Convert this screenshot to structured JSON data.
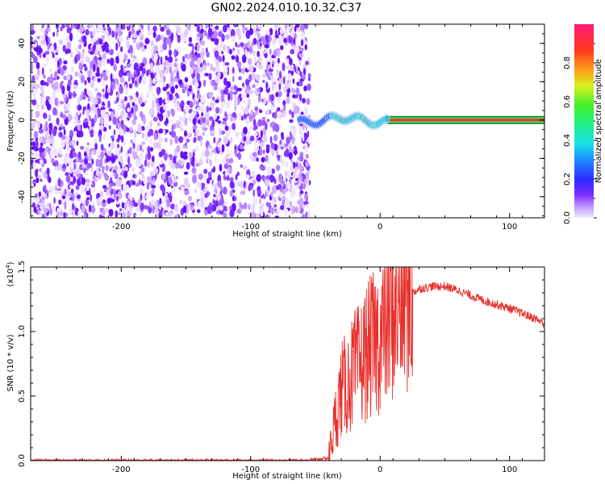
{
  "title": "GN02.2024.010.10.32.C37",
  "chart_data": [
    {
      "type": "heatmap",
      "xlabel": "Height of straight line (km)",
      "ylabel": "Frequency (Hz)",
      "xlim": [
        -270,
        127
      ],
      "ylim": [
        -51,
        50
      ],
      "xticks": [
        -200,
        -100,
        0,
        100
      ],
      "yticks": [
        -40,
        -20,
        0,
        20,
        40
      ],
      "colorbar": {
        "label": "Normalized spectral amplitude",
        "range": [
          0,
          1
        ],
        "ticks": [
          0.0,
          0.2,
          0.4,
          0.6,
          0.8
        ]
      },
      "regions": {
        "noise_x_range": [
          -270,
          -57
        ],
        "signal_start_x": -62,
        "carrier_freq": 0
      }
    },
    {
      "type": "line",
      "series": [
        {
          "color": "#e8302c",
          "x": [
            -270,
            -200,
            -100,
            -60,
            -40,
            -35,
            -30,
            -25,
            -20,
            -15,
            -10,
            -5,
            0,
            5,
            10,
            15,
            20,
            30,
            40,
            50,
            60,
            70,
            80,
            90,
            100,
            110,
            120,
            127
          ],
          "y": [
            0.0,
            0.0,
            0.0,
            0.0,
            0.02,
            0.3,
            0.55,
            0.6,
            0.7,
            0.75,
            0.85,
            0.9,
            0.95,
            1.05,
            1.15,
            1.22,
            1.27,
            1.33,
            1.35,
            1.35,
            1.32,
            1.28,
            1.24,
            1.21,
            1.18,
            1.14,
            1.1,
            1.06
          ]
        }
      ],
      "xlabel": "Height of straight line (km)",
      "ylabel": "SNR (10 * v/v)",
      "y_multiplier": "(x10",
      "y_multiplier_exp": "4",
      "y_multiplier_close": ")",
      "xlim": [
        -270,
        127
      ],
      "ylim": [
        0,
        1.5
      ],
      "xticks": [
        -200,
        -100,
        0,
        100
      ],
      "yticks": [
        0.0,
        0.5,
        1.0,
        1.5
      ]
    }
  ]
}
